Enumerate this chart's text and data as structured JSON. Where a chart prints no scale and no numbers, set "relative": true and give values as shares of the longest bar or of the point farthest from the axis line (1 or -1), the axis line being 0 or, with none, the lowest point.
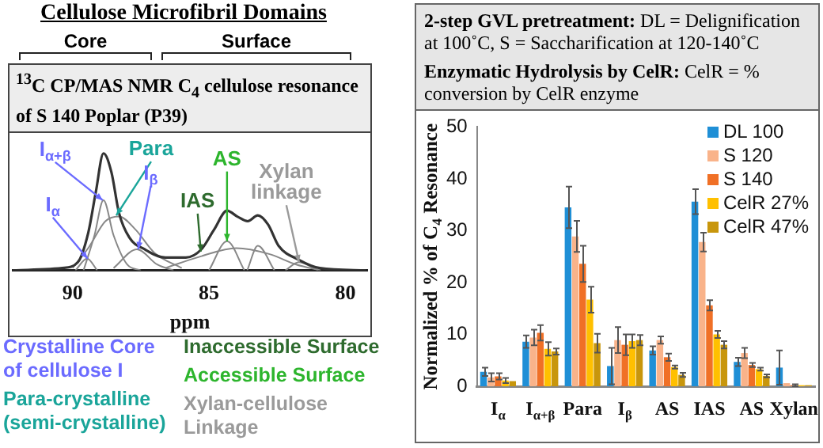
{
  "chart_data": [
    {
      "type": "line",
      "title": "Cellulose Microfibril Domains",
      "subtitle": "$^{13}$C CP/MAS NMR C$_{4}$ cellulose resonance of S 140 Poplar (P39)",
      "xlabel": "ppm",
      "relative": true,
      "xlim": [
        92.2,
        79.2
      ],
      "xticks": [
        90,
        85,
        80
      ],
      "tick_labels": "x",
      "grid": false,
      "legend": false,
      "annotations": [
        "Core",
        "Surface",
        {
          "text": "I$_{α}$",
          "x": 89.45,
          "y": 0.1
        },
        {
          "text": "I$_{α+β}$",
          "x": 88.9,
          "y": 0.6
        },
        {
          "text": "Para",
          "x": 88.4,
          "y": 0.47
        },
        {
          "text": "I$_{β}$",
          "x": 87.6,
          "y": 0.18
        },
        {
          "text": "IAS",
          "x": 85.3,
          "y": 0.16
        },
        {
          "text": "AS",
          "x": 84.34,
          "y": 0.25
        },
        {
          "text": "Xylan linkage",
          "x": 81.7,
          "y": 0.07
        },
        "Crystalline Core of cellulose I",
        "Para-crystalline (semi-crystalline)",
        "Inaccessible Surface",
        "Accessible Surface",
        "Xylan-cellulose Linkage"
      ],
      "series": [
        {
          "color": "#333333",
          "x": [
            92.2,
            90.38,
            89.81,
            89.43,
            89.15,
            88.87,
            88.58,
            88.3,
            87.92,
            87.36,
            86.6,
            85.85,
            85.28,
            84.81,
            84.34,
            83.96,
            83.58,
            83.21,
            82.83,
            82.45,
            81.7,
            80.94,
            79.25
          ],
          "values": [
            0,
            0.02,
            0.07,
            0.32,
            0.67,
            1,
            0.84,
            0.49,
            0.28,
            0.18,
            0.11,
            0.11,
            0.18,
            0.35,
            0.51,
            0.46,
            0.42,
            0.47,
            0.39,
            0.21,
            0.09,
            0.02,
            0
          ]
        },
        {
          "color": "#888888",
          "x": [
            89.9,
            89.47,
            89.1
          ],
          "values": [
            0,
            0.1,
            0
          ]
        },
        {
          "color": "#888888",
          "x": [
            89.6,
            89.2,
            88.87,
            88.5,
            88.0,
            87.5
          ],
          "values": [
            0,
            0.3,
            0.6,
            0.3,
            0.05,
            0
          ]
        },
        {
          "color": "#888888",
          "x": [
            90.0,
            89.4,
            88.8,
            88.3,
            87.7,
            87.0,
            86.0
          ],
          "values": [
            0.02,
            0.2,
            0.42,
            0.46,
            0.35,
            0.15,
            0.02
          ]
        },
        {
          "color": "#888888",
          "x": [
            88.5,
            87.64,
            86.9,
            86.3
          ],
          "values": [
            0.02,
            0.18,
            0.05,
            0
          ]
        },
        {
          "color": "#888888",
          "x": [
            86.6,
            85.3,
            84.0,
            82.8,
            81.8,
            80.9
          ],
          "values": [
            0.02,
            0.12,
            0.19,
            0.14,
            0.05,
            0
          ]
        },
        {
          "color": "#888888",
          "x": [
            85.0,
            84.34,
            83.7
          ],
          "values": [
            0,
            0.25,
            0
          ]
        },
        {
          "color": "#888888",
          "x": [
            83.6,
            83.21,
            82.6
          ],
          "values": [
            0,
            0.21,
            0
          ]
        },
        {
          "color": "#888888",
          "x": [
            82.2,
            81.7,
            81.0
          ],
          "values": [
            0,
            0.07,
            0
          ]
        }
      ]
    },
    {
      "type": "bar",
      "title": "2-step GVL pretreatment: DL = Delignification at 100˚C, S = Saccharification at 120-140˚C",
      "subtitle": "Enzymatic Hydrolysis by CelR: CelR = % conversion by CelR enzyme",
      "ylabel": "Normalized % of C$_{4}$ Resonance",
      "categories": [
        "I$_{α}$",
        "I$_{α+β}$",
        "Para",
        "I$_{β}$",
        "AS",
        "IAS",
        "AS",
        "Xylan"
      ],
      "ylim": [
        0,
        50
      ],
      "yticks": [
        0,
        10,
        20,
        30,
        40,
        50
      ],
      "grid": false,
      "legend": "top right",
      "series": [
        {
          "name": "DL 100",
          "color": "#1f8fd6",
          "values": [
            2.8,
            8.6,
            34.5,
            3.9,
            6.9,
            35.6,
            4.7,
            3.6
          ],
          "errors": [
            0.8,
            1.2,
            4,
            3.5,
            0.8,
            2.4,
            0.8,
            3.3
          ]
        },
        {
          "name": "S 120",
          "color": "#f9b38a",
          "values": [
            1.7,
            9.4,
            28.9,
            8.9,
            8.9,
            27.8,
            6.4,
            0.6
          ],
          "errors": [
            0.8,
            1.5,
            3,
            2.5,
            0.7,
            1.8,
            1,
            null
          ]
        },
        {
          "name": "S 140",
          "color": "#f07026",
          "values": [
            1.9,
            10.3,
            23.6,
            8,
            5.6,
            15.6,
            4.1,
            0.2
          ],
          "errors": [
            0.6,
            1.5,
            3.5,
            2,
            0.7,
            1,
            0.4,
            0.2
          ]
        },
        {
          "name": "CelR 27%",
          "color": "#ffc000",
          "values": [
            1.1,
            7.2,
            16.7,
            8.7,
            3.7,
            10,
            3.3,
            0.2
          ],
          "errors": [
            0.5,
            1.3,
            2.5,
            1.3,
            0.3,
            0.7,
            0.3,
            null
          ]
        },
        {
          "name": "CelR 47%",
          "color": "#c8960c",
          "values": [
            1,
            6.7,
            8.3,
            8.9,
            2.2,
            8,
            2,
            0.2
          ],
          "errors": [
            null,
            0.6,
            1.8,
            1,
            0.4,
            0.7,
            0.3,
            null
          ]
        }
      ]
    }
  ]
}
